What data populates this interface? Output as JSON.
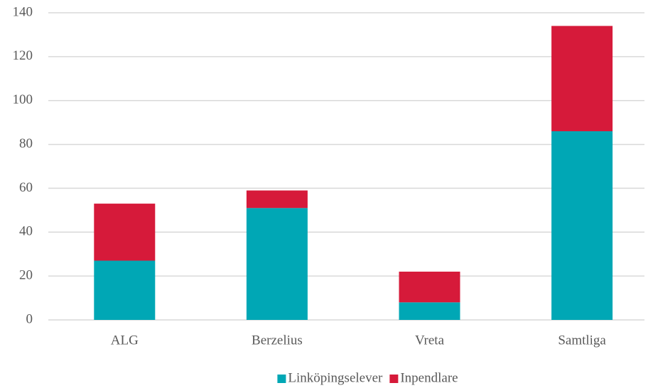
{
  "chart_data": {
    "type": "stacked_bar",
    "categories": [
      "ALG",
      "Berzelius",
      "Vreta",
      "Samtliga"
    ],
    "series": [
      {
        "name": "Linköpingselever",
        "color": "#00a7b5",
        "values": [
          27,
          51,
          8,
          86
        ]
      },
      {
        "name": "Inpendlare",
        "color": "#d61a3a",
        "values": [
          26,
          8,
          14,
          48
        ]
      }
    ],
    "ylim": [
      0,
      140
    ],
    "yticks": [
      0,
      20,
      40,
      60,
      80,
      100,
      120,
      140
    ],
    "grid": true,
    "legend": "bottom"
  }
}
